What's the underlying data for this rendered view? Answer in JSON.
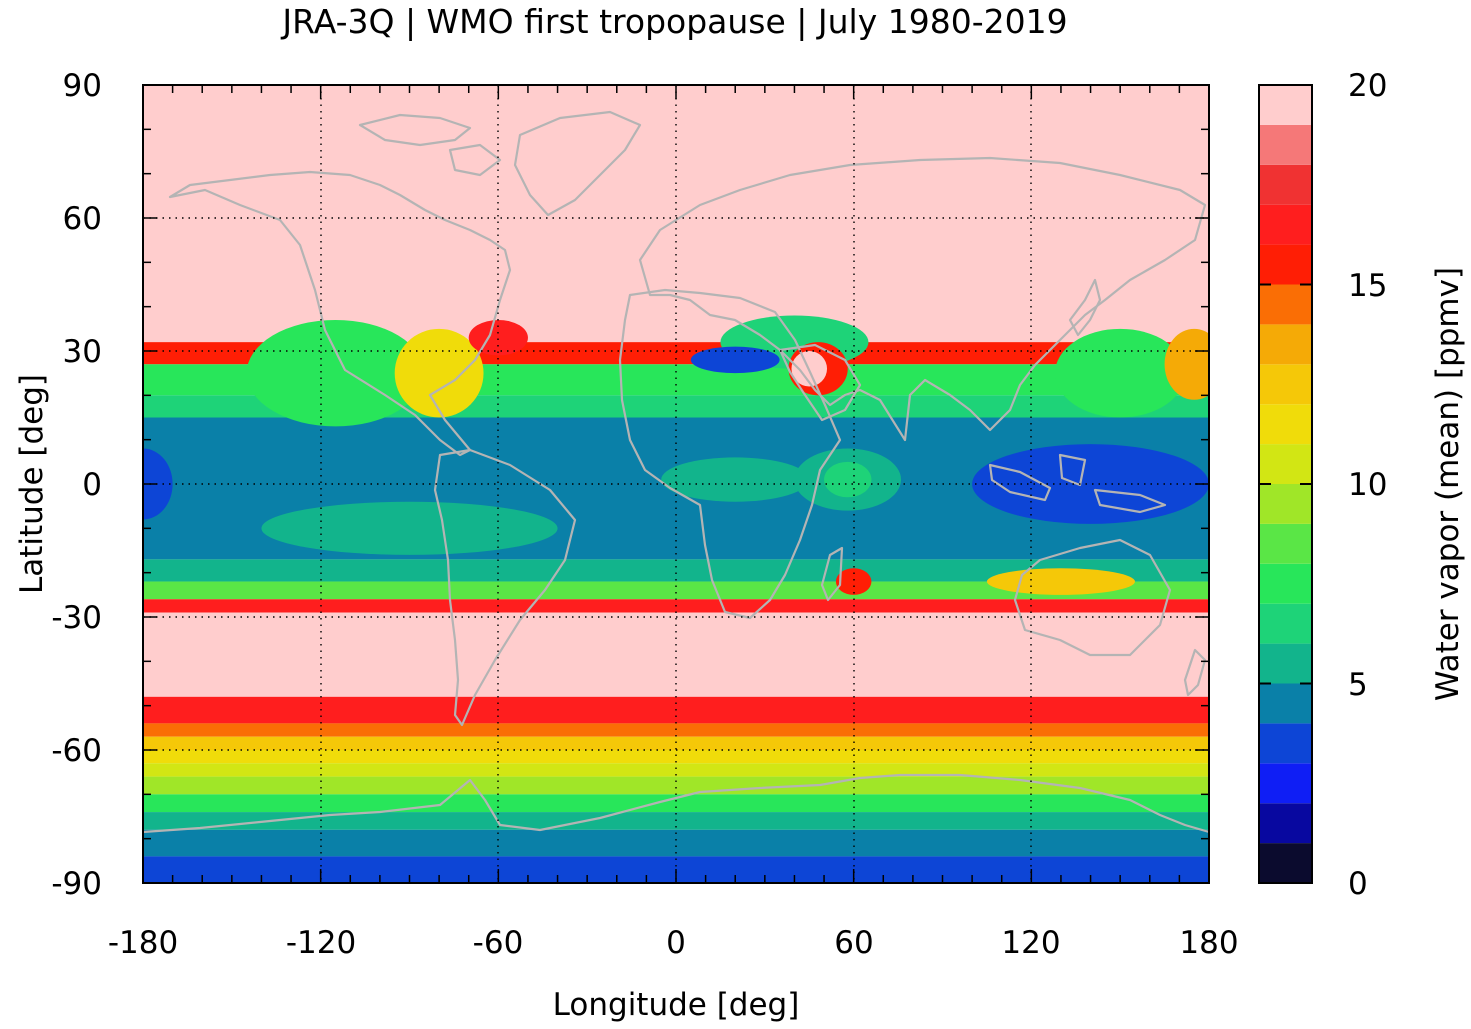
{
  "title": "JRA-3Q | WMO first tropopause | July 1980-2019",
  "chart_data": {
    "type": "heatmap",
    "title": "JRA-3Q | WMO first tropopause | July 1980-2019",
    "xlabel": "Longitude [deg]",
    "ylabel": "Latitude [deg]",
    "colorbar_label": "Water vapor (mean) [ppmv]",
    "xlim": [
      -180,
      180
    ],
    "ylim": [
      -90,
      90
    ],
    "x_ticks": [
      -180,
      -120,
      -60,
      0,
      60,
      120,
      180
    ],
    "y_ticks": [
      -90,
      -60,
      -30,
      0,
      30,
      60,
      90
    ],
    "x_tick_labels": [
      "-180",
      "-120",
      "-60",
      "0",
      "60",
      "120",
      "180"
    ],
    "y_tick_labels": [
      "-90",
      "-60",
      "-30",
      "0",
      "30",
      "60",
      "90"
    ],
    "colorbar_range": [
      0,
      20
    ],
    "colorbar_ticks": [
      0,
      5,
      10,
      15,
      20
    ],
    "colorbar_tick_labels": [
      "0",
      "5",
      "10",
      "15",
      "20"
    ],
    "grid": true,
    "grid_style": "dotted",
    "coastlines": true,
    "coastline_color": "#b4b4b4",
    "colorbar_levels": [
      {
        "from": 0,
        "to": 1,
        "color": "#0b0b2e"
      },
      {
        "from": 1,
        "to": 2,
        "color": "#0808a0"
      },
      {
        "from": 2,
        "to": 3,
        "color": "#0f1ef5"
      },
      {
        "from": 3,
        "to": 4,
        "color": "#0d45d6"
      },
      {
        "from": 4,
        "to": 5,
        "color": "#0a80a8"
      },
      {
        "from": 5,
        "to": 6,
        "color": "#12b48c"
      },
      {
        "from": 6,
        "to": 7,
        "color": "#1ed378"
      },
      {
        "from": 7,
        "to": 8,
        "color": "#28e65a"
      },
      {
        "from": 8,
        "to": 9,
        "color": "#5ae646"
      },
      {
        "from": 9,
        "to": 10,
        "color": "#a0e628"
      },
      {
        "from": 10,
        "to": 11,
        "color": "#d2e614"
      },
      {
        "from": 11,
        "to": 12,
        "color": "#f0dc0a"
      },
      {
        "from": 12,
        "to": 13,
        "color": "#f5c808"
      },
      {
        "from": 13,
        "to": 14,
        "color": "#f5aa06"
      },
      {
        "from": 14,
        "to": 15,
        "color": "#fa6e05"
      },
      {
        "from": 15,
        "to": 16,
        "color": "#ff1e05"
      },
      {
        "from": 16,
        "to": 17,
        "color": "#ff1e1e"
      },
      {
        "from": 17,
        "to": 18,
        "color": "#f03232"
      },
      {
        "from": 18,
        "to": 19,
        "color": "#f57878"
      },
      {
        "from": 19,
        "to": 20,
        "color": "#ffcdcd"
      }
    ],
    "zonal_bands": [
      {
        "lat_from": 32,
        "lat_to": 90,
        "value": 20
      },
      {
        "lat_from": 27,
        "lat_to": 32,
        "value": 15.5
      },
      {
        "lat_from": 20,
        "lat_to": 27,
        "value": 7.5
      },
      {
        "lat_from": 15,
        "lat_to": 20,
        "value": 6.5
      },
      {
        "lat_from": -17,
        "lat_to": 15,
        "value": 4.5
      },
      {
        "lat_from": -22,
        "lat_to": -17,
        "value": 5.5
      },
      {
        "lat_from": -26,
        "lat_to": -22,
        "value": 8.5
      },
      {
        "lat_from": -29,
        "lat_to": -26,
        "value": 16
      },
      {
        "lat_from": -48,
        "lat_to": -29,
        "value": 20
      },
      {
        "lat_from": -54,
        "lat_to": -48,
        "value": 16
      },
      {
        "lat_from": -57,
        "lat_to": -54,
        "value": 14
      },
      {
        "lat_from": -60,
        "lat_to": -57,
        "value": 12.5
      },
      {
        "lat_from": -63,
        "lat_to": -60,
        "value": 11.5
      },
      {
        "lat_from": -66,
        "lat_to": -63,
        "value": 10.5
      },
      {
        "lat_from": -70,
        "lat_to": -66,
        "value": 9
      },
      {
        "lat_from": -74,
        "lat_to": -70,
        "value": 7.5
      },
      {
        "lat_from": -78,
        "lat_to": -74,
        "value": 5.5
      },
      {
        "lat_from": -84,
        "lat_to": -78,
        "value": 4.5
      },
      {
        "lat_from": -90,
        "lat_to": -84,
        "value": 3.5
      }
    ],
    "regional_features": [
      {
        "lon": -115,
        "lat": 25,
        "rx": 30,
        "ry": 12,
        "value": 7.5
      },
      {
        "lon": -80,
        "lat": 25,
        "rx": 15,
        "ry": 10,
        "value": 11.5
      },
      {
        "lon": -60,
        "lat": 33,
        "rx": 10,
        "ry": 4,
        "value": 16
      },
      {
        "lon": -180,
        "lat": 0,
        "rx": 10,
        "ry": 8,
        "value": 3.5
      },
      {
        "lon": 20,
        "lat": 1,
        "rx": 25,
        "ry": 5,
        "value": 5.5
      },
      {
        "lon": 58,
        "lat": 1,
        "rx": 18,
        "ry": 7,
        "value": 5.5
      },
      {
        "lon": 58,
        "lat": 1,
        "rx": 8,
        "ry": 4,
        "value": 6.5
      },
      {
        "lon": 140,
        "lat": 0,
        "rx": 40,
        "ry": 9,
        "value": 3.5
      },
      {
        "lon": -90,
        "lat": -10,
        "rx": 50,
        "ry": 6,
        "value": 5.5
      },
      {
        "lon": 150,
        "lat": 25,
        "rx": 22,
        "ry": 10,
        "value": 7.5
      },
      {
        "lon": 175,
        "lat": 27,
        "rx": 10,
        "ry": 8,
        "value": 13
      },
      {
        "lon": 40,
        "lat": 32,
        "rx": 25,
        "ry": 6,
        "value": 6
      },
      {
        "lon": 20,
        "lat": 28,
        "rx": 15,
        "ry": 3,
        "value": 3.5
      },
      {
        "lon": 48,
        "lat": 26,
        "rx": 10,
        "ry": 6,
        "value": 15.5
      },
      {
        "lon": 45,
        "lat": 26,
        "rx": 6,
        "ry": 4,
        "value": 19.5
      },
      {
        "lon": 60,
        "lat": -22,
        "rx": 6,
        "ry": 3,
        "value": 15
      },
      {
        "lon": 130,
        "lat": -22,
        "rx": 25,
        "ry": 3,
        "value": 12
      }
    ]
  }
}
